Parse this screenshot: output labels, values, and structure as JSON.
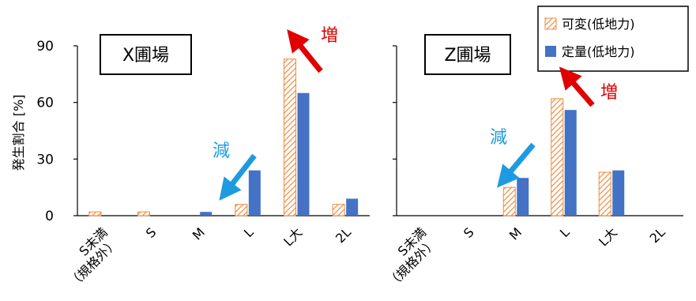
{
  "ylabel": "発生割合 [%]",
  "legend": {
    "series1": "可変(低地力)",
    "series2": "定量(低地力)"
  },
  "colors": {
    "hatch": "#f08a3c",
    "solid": "#4472c4",
    "red": "#e00000",
    "blue": "#1e9be0"
  },
  "annotations": {
    "increase": "増",
    "decrease": "減"
  },
  "yticks": [
    "0",
    "30",
    "60",
    "90"
  ],
  "panel_titles": [
    "X圃場",
    "Z圃場"
  ],
  "chart_data": [
    {
      "type": "bar",
      "title": "X圃場",
      "ylabel": "発生割合 [%]",
      "ylim": [
        0,
        90
      ],
      "yticks": [
        0,
        30,
        60,
        90
      ],
      "categories": [
        "S未満（規格外）",
        "S",
        "M",
        "L",
        "L大",
        "2L"
      ],
      "series": [
        {
          "name": "可変(低地力)",
          "values": [
            2,
            2,
            0,
            6,
            83,
            6
          ]
        },
        {
          "name": "定量(低地力)",
          "values": [
            0,
            0,
            2,
            24,
            65,
            9
          ]
        }
      ]
    },
    {
      "type": "bar",
      "title": "Z圃場",
      "ylim": [
        0,
        90
      ],
      "yticks": [
        0,
        30,
        60,
        90
      ],
      "categories": [
        "S未満（規格外）",
        "S",
        "M",
        "L",
        "L大",
        "2L"
      ],
      "series": [
        {
          "name": "可変(低地力)",
          "values": [
            0,
            0,
            15,
            62,
            23,
            0
          ]
        },
        {
          "name": "定量(低地力)",
          "values": [
            0,
            0,
            20,
            56,
            24,
            0
          ]
        }
      ]
    }
  ]
}
